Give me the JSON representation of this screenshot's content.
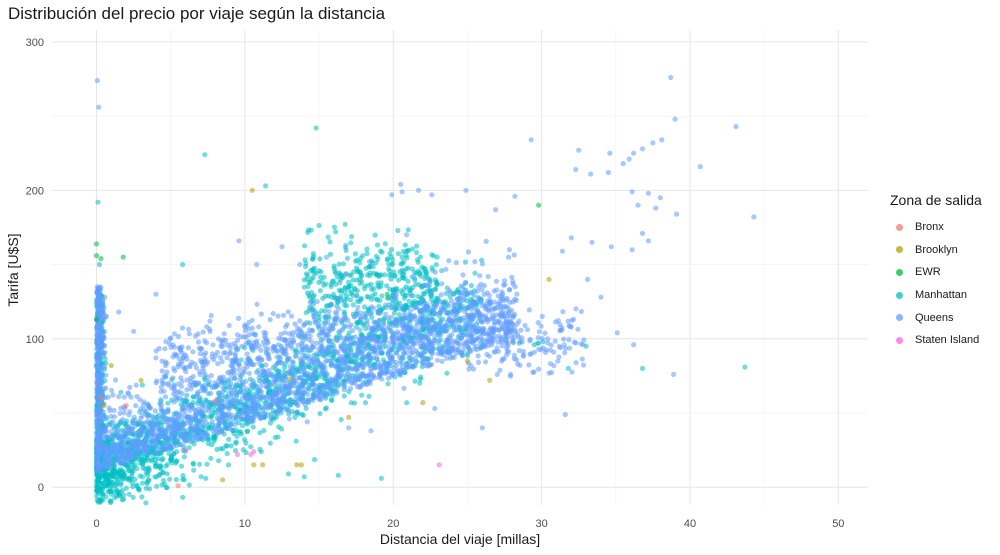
{
  "chart_data": {
    "type": "scatter",
    "title": "Distribución del precio por viaje según la distancia",
    "xlabel": "Distancia del viaje [millas]",
    "ylabel": "Tarifa [U$S]",
    "xlim": [
      -3,
      52
    ],
    "ylim": [
      -12,
      308
    ],
    "x_ticks": [
      0,
      10,
      20,
      30,
      40,
      50
    ],
    "y_ticks": [
      0,
      100,
      200,
      300
    ],
    "grid": true,
    "legend_title": "Zona de salida",
    "legend_position": "right",
    "point_opacity": 0.55,
    "series": [
      {
        "name": "Bronx",
        "color": "#F8766D",
        "points": [
          [
            5.5,
            1
          ],
          [
            0.3,
            60
          ],
          [
            8,
            58
          ],
          [
            2,
            55
          ]
        ]
      },
      {
        "name": "Brooklyn",
        "color": "#B79F00",
        "points": [
          [
            10.5,
            200
          ],
          [
            10.6,
            15
          ],
          [
            11.2,
            15
          ],
          [
            13.5,
            15
          ],
          [
            13.8,
            15
          ],
          [
            8.5,
            5
          ],
          [
            26.5,
            72
          ],
          [
            30.5,
            140
          ],
          [
            1,
            82
          ],
          [
            3,
            72
          ],
          [
            13,
            73
          ],
          [
            22,
            57
          ],
          [
            17,
            47
          ],
          [
            25,
            85
          ],
          [
            0.5,
            55
          ]
        ]
      },
      {
        "name": "EWR",
        "color": "#00BA38",
        "points": [
          [
            0,
            164
          ],
          [
            0,
            156
          ],
          [
            0.3,
            154
          ],
          [
            1.8,
            155
          ],
          [
            29.8,
            190
          ],
          [
            19.6,
            130
          ],
          [
            0,
            113
          ]
        ]
      },
      {
        "name": "Manhattan",
        "color": "#00BFC4",
        "points": [
          [
            0.1,
            192
          ],
          [
            7.3,
            224
          ],
          [
            14.8,
            242
          ],
          [
            11.4,
            203
          ],
          [
            16.3,
            8
          ],
          [
            19.2,
            6
          ],
          [
            29.8,
            97
          ],
          [
            31.8,
            80
          ],
          [
            36.8,
            80
          ],
          [
            43.7,
            81
          ],
          [
            33,
            95
          ],
          [
            28.5,
            97
          ],
          [
            29.5,
            96
          ],
          [
            30.1,
            98
          ],
          [
            23.5,
            125
          ],
          [
            25,
            90
          ],
          [
            14,
            7
          ],
          [
            5.8,
            150
          ],
          [
            0.2,
            150
          ]
        ]
      },
      {
        "name": "Queens",
        "color": "#619CFF",
        "points": [
          [
            0.05,
            274
          ],
          [
            0.15,
            256
          ],
          [
            38.7,
            276
          ],
          [
            39,
            248
          ],
          [
            43.1,
            243
          ],
          [
            29.3,
            234
          ],
          [
            32.5,
            227
          ],
          [
            34.6,
            225
          ],
          [
            36.2,
            225
          ],
          [
            35.9,
            221
          ],
          [
            36.8,
            228
          ],
          [
            37.5,
            232
          ],
          [
            38.1,
            234
          ],
          [
            40.7,
            216
          ],
          [
            35.5,
            218
          ],
          [
            32.3,
            214
          ],
          [
            33.3,
            211
          ],
          [
            34.5,
            212
          ],
          [
            36.1,
            199
          ],
          [
            36.5,
            190
          ],
          [
            37.2,
            198
          ],
          [
            37.7,
            188
          ],
          [
            38,
            195
          ],
          [
            39.1,
            184
          ],
          [
            44.3,
            182
          ],
          [
            36.8,
            171
          ],
          [
            37.2,
            166
          ],
          [
            36.1,
            160
          ],
          [
            34.7,
            162
          ],
          [
            32,
            168
          ],
          [
            31.4,
            159
          ],
          [
            33.4,
            165
          ],
          [
            33.1,
            140
          ],
          [
            34,
            128
          ],
          [
            32,
            108
          ],
          [
            32.8,
            96
          ],
          [
            36.2,
            96
          ],
          [
            38.9,
            76
          ],
          [
            35.1,
            104
          ],
          [
            31.6,
            49
          ],
          [
            28.2,
            196
          ],
          [
            26.9,
            187
          ],
          [
            24.9,
            200
          ],
          [
            22.6,
            197
          ],
          [
            20.5,
            204
          ],
          [
            20.6,
            199
          ],
          [
            21.7,
            200
          ],
          [
            19.9,
            197
          ],
          [
            25.5,
            152
          ],
          [
            24.7,
            143
          ],
          [
            18.4,
            152
          ],
          [
            16.8,
            163
          ],
          [
            15.5,
            155
          ],
          [
            13.7,
            150
          ],
          [
            12.5,
            162
          ],
          [
            9.6,
            166
          ],
          [
            10.8,
            150
          ],
          [
            20.9,
            170
          ],
          [
            24,
            112
          ],
          [
            27.5,
            122
          ],
          [
            1.5,
            118
          ],
          [
            2.5,
            105
          ],
          [
            4,
            130
          ],
          [
            13.4,
            50
          ],
          [
            17,
            40
          ],
          [
            18.5,
            38
          ],
          [
            11.8,
            47
          ],
          [
            13,
            46
          ],
          [
            14.2,
            44
          ],
          [
            26,
            40
          ],
          [
            22.8,
            53
          ]
        ]
      },
      {
        "name": "Staten Island",
        "color": "#F564E3",
        "points": [
          [
            23.1,
            15
          ],
          [
            9.5,
            22
          ],
          [
            10.4,
            22
          ],
          [
            10.6,
            24
          ],
          [
            6,
            25
          ]
        ]
      }
    ]
  }
}
